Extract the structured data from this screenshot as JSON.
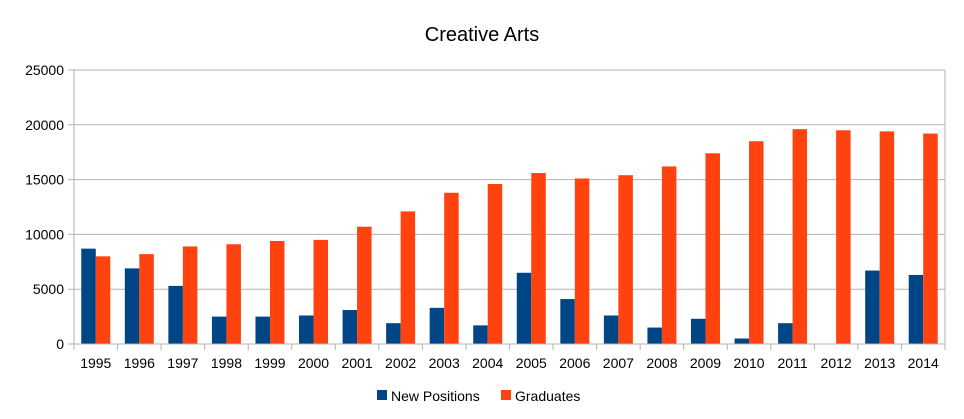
{
  "chart_data": {
    "type": "bar",
    "title": "Creative Arts",
    "xlabel": "",
    "ylabel": "",
    "ylim": [
      0,
      25000
    ],
    "yticks": [
      0,
      5000,
      10000,
      15000,
      20000,
      25000
    ],
    "grid": true,
    "legend_position": "bottom",
    "categories": [
      "1995",
      "1996",
      "1997",
      "1998",
      "1999",
      "2000",
      "2001",
      "2002",
      "2003",
      "2004",
      "2005",
      "2006",
      "2007",
      "2008",
      "2009",
      "2010",
      "2011",
      "2012",
      "2013",
      "2014"
    ],
    "series": [
      {
        "name": "New Positions",
        "color": "#004586",
        "values": [
          8700,
          6900,
          5300,
          2500,
          2500,
          2600,
          3100,
          1900,
          3300,
          1700,
          6500,
          4100,
          2600,
          1500,
          2300,
          500,
          1900,
          0,
          6700,
          6300
        ]
      },
      {
        "name": "Graduates",
        "color": "#ff420e",
        "values": [
          8000,
          8200,
          8900,
          9100,
          9400,
          9500,
          10700,
          12100,
          13800,
          14600,
          15600,
          15100,
          15400,
          16200,
          17400,
          18500,
          19600,
          19500,
          19400,
          19200
        ]
      }
    ]
  }
}
